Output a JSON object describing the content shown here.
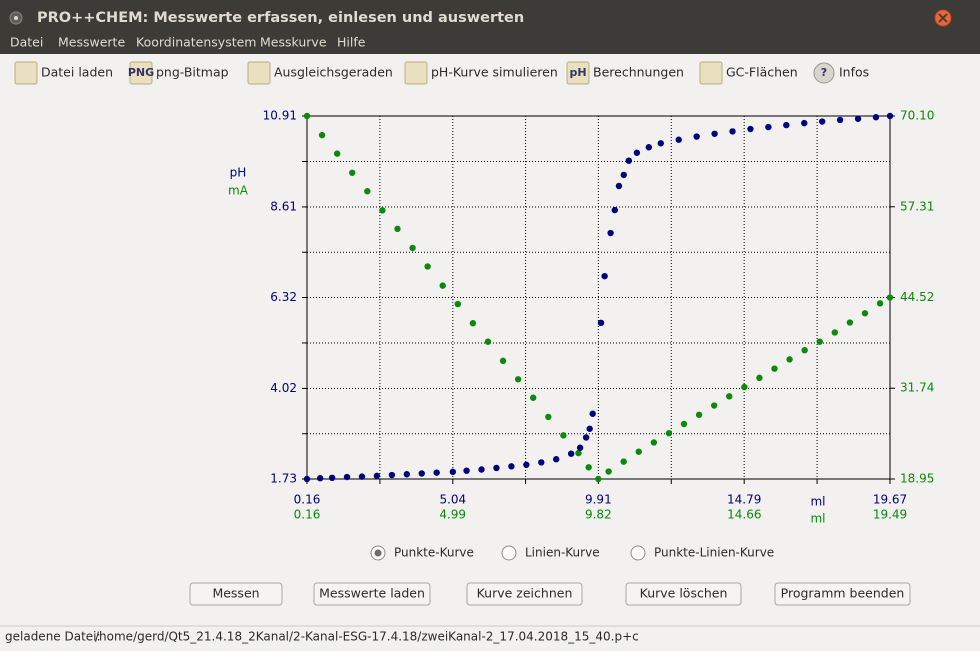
{
  "window": {
    "title": "PRO++CHEM: Messwerte erfassen, einlesen und auswerten"
  },
  "menu": [
    "Datei",
    "Messwerte",
    "Koordinatensystem",
    "Messkurve",
    "Hilfe"
  ],
  "toolbar": [
    {
      "label": "Datei laden"
    },
    {
      "icon": "PNG",
      "label": "png-Bitmap"
    },
    {
      "label": "Ausgleichsgeraden"
    },
    {
      "label": "pH-Kurve simulieren"
    },
    {
      "icon": "pH",
      "label": "Berechnungen"
    },
    {
      "label": "GC-Flächen"
    },
    {
      "icon": "?",
      "label": "Infos"
    }
  ],
  "chart_data": {
    "type": "scatter",
    "xlabel": "ml",
    "x2label": "ml",
    "xlim": [
      0.16,
      19.67
    ],
    "xticks": [
      0.16,
      5.04,
      9.91,
      14.79,
      19.67
    ],
    "x2lim": [
      0.16,
      19.49
    ],
    "x2ticks": [
      0.16,
      4.99,
      9.82,
      14.66,
      19.49
    ],
    "ylim": [
      1.73,
      10.91
    ],
    "yticks": [
      1.73,
      4.02,
      6.32,
      8.61,
      10.91
    ],
    "y2lim": [
      18.95,
      70.1
    ],
    "y2ticks": [
      18.95,
      31.74,
      44.52,
      57.31,
      {
        "value": 70.1,
        "label": "70.10"
      }
    ],
    "grid": true,
    "series": [
      {
        "name": "pH",
        "color": "#00007f",
        "x": [
          0.16,
          0.6,
          1.0,
          1.5,
          2.0,
          2.5,
          3.0,
          3.5,
          4.0,
          4.5,
          5.04,
          5.5,
          6.0,
          6.5,
          7.0,
          7.5,
          8.0,
          8.5,
          9.0,
          9.3,
          9.5,
          9.62,
          9.72,
          10.0,
          10.12,
          10.32,
          10.46,
          10.6,
          10.76,
          10.93,
          11.2,
          11.6,
          12.0,
          12.6,
          13.2,
          13.8,
          14.4,
          15.0,
          15.6,
          16.2,
          16.8,
          17.4,
          18.0,
          18.6,
          19.2,
          19.67
        ],
        "values": [
          1.73,
          1.75,
          1.76,
          1.78,
          1.79,
          1.81,
          1.83,
          1.85,
          1.87,
          1.89,
          1.91,
          1.94,
          1.97,
          2.01,
          2.05,
          2.09,
          2.15,
          2.23,
          2.37,
          2.52,
          2.78,
          3.0,
          3.38,
          5.68,
          6.86,
          7.95,
          8.53,
          9.14,
          9.42,
          9.78,
          9.98,
          10.12,
          10.22,
          10.31,
          10.39,
          10.46,
          10.52,
          10.58,
          10.63,
          10.68,
          10.73,
          10.77,
          10.81,
          10.84,
          10.88,
          10.91
        ]
      },
      {
        "name": "mA",
        "color": "#0a8a0a",
        "axis": "y2",
        "xaxis": "x2",
        "x": [
          0.16,
          0.66,
          1.16,
          1.66,
          2.16,
          2.66,
          3.16,
          3.66,
          4.16,
          4.66,
          5.16,
          5.66,
          6.16,
          6.66,
          7.16,
          7.66,
          8.16,
          8.66,
          9.16,
          9.5,
          9.82,
          10.16,
          10.66,
          11.16,
          11.66,
          12.16,
          12.66,
          13.16,
          13.66,
          14.16,
          14.66,
          15.16,
          15.66,
          16.16,
          16.66,
          17.16,
          17.66,
          18.16,
          18.66,
          19.16,
          19.49
        ],
        "values": [
          70.1,
          67.4,
          64.8,
          62.1,
          59.5,
          56.8,
          54.2,
          51.5,
          48.9,
          46.2,
          43.6,
          40.9,
          38.3,
          35.6,
          33.0,
          30.4,
          27.7,
          25.1,
          22.6,
          20.6,
          18.95,
          20.0,
          21.4,
          22.8,
          24.1,
          25.4,
          26.7,
          28.0,
          29.3,
          30.6,
          31.9,
          33.2,
          34.5,
          35.8,
          37.1,
          38.3,
          39.6,
          41.0,
          42.3,
          43.7,
          44.52
        ]
      }
    ]
  },
  "controls": {
    "radios": [
      {
        "label": "Punkte-Kurve",
        "checked": true
      },
      {
        "label": "Linien-Kurve",
        "checked": false
      },
      {
        "label": "Punkte-Linien-Kurve",
        "checked": false
      }
    ],
    "buttons": [
      "Messen",
      "Messwerte laden",
      "Kurve zeichnen",
      "Kurve löschen",
      "Programm beenden"
    ]
  },
  "status": {
    "label": "geladene Datei:",
    "path": "/home/gerd/Qt5_21.4.18_2Kanal/2-Kanal-ESG-17.4.18/zweiKanal-2_17.04.2018_15_40.p+c"
  }
}
